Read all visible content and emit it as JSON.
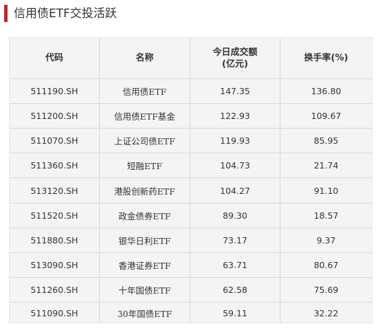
{
  "title": "信用债ETF交投活跃",
  "colors": {
    "accent": "#c0272d",
    "table_bg": "#f4f4f4",
    "divider": "#d7d7d7"
  },
  "table": {
    "headers": [
      "代码",
      "名称",
      "今日成交额\n(亿元)",
      "换手率(%)"
    ],
    "rows": [
      [
        "511190.SH",
        "信用债ETF",
        "147.35",
        "136.80"
      ],
      [
        "511200.SH",
        "信用债ETF基金",
        "122.93",
        "109.67"
      ],
      [
        "511070.SH",
        "上证公司债ETF",
        "119.93",
        "85.95"
      ],
      [
        "511360.SH",
        "短融ETF",
        "104.73",
        "21.74"
      ],
      [
        "513120.SH",
        "港股创新药ETF",
        "104.27",
        "91.10"
      ],
      [
        "511520.SH",
        "政金债券ETF",
        "89.30",
        "18.57"
      ],
      [
        "511880.SH",
        "银华日利ETF",
        "73.17",
        "9.37"
      ],
      [
        "513090.SH",
        "香港证券ETF",
        "63.71",
        "80.67"
      ],
      [
        "511260.SH",
        "十年国债ETF",
        "62.58",
        "75.69"
      ],
      [
        "511090.SH",
        "30年国债ETF",
        "59.11",
        "32.22"
      ]
    ]
  }
}
